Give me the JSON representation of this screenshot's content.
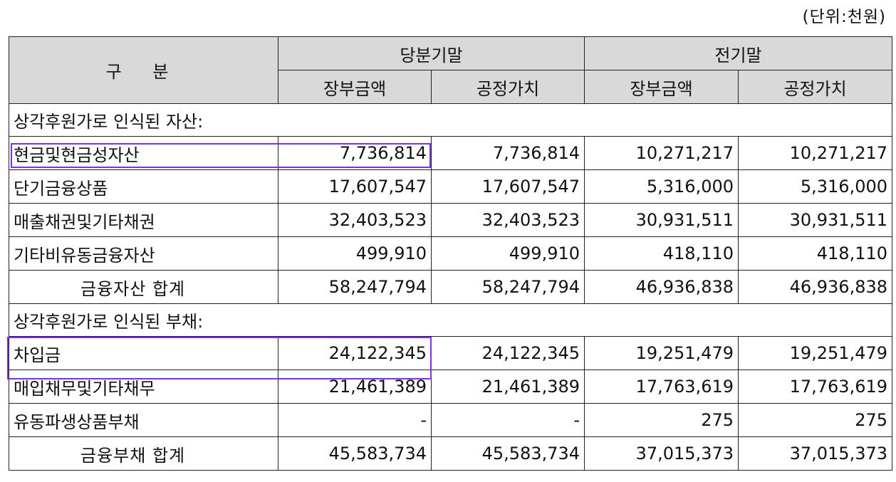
{
  "unit_label": "(단위:천원)",
  "header": {
    "category": "구 분",
    "current_period": "당분기말",
    "prior_period": "전기말",
    "book_value": "장부금액",
    "fair_value": "공정가치"
  },
  "sections": [
    {
      "title": "상각후원가로 인식된 자산:",
      "rows": [
        {
          "label": "현금및현금성자산",
          "cur_book": "7,736,814",
          "cur_fair": "7,736,814",
          "prev_book": "10,271,217",
          "prev_fair": "10,271,217"
        },
        {
          "label": "단기금융상품",
          "cur_book": "17,607,547",
          "cur_fair": "17,607,547",
          "prev_book": "5,316,000",
          "prev_fair": "5,316,000"
        },
        {
          "label": "매출채권및기타채권",
          "cur_book": "32,403,523",
          "cur_fair": "32,403,523",
          "prev_book": "30,931,511",
          "prev_fair": "30,931,511"
        },
        {
          "label": "기타비유동금융자산",
          "cur_book": "499,910",
          "cur_fair": "499,910",
          "prev_book": "418,110",
          "prev_fair": "418,110"
        }
      ],
      "total": {
        "label": "금융자산 합계",
        "cur_book": "58,247,794",
        "cur_fair": "58,247,794",
        "prev_book": "46,936,838",
        "prev_fair": "46,936,838"
      }
    },
    {
      "title": "상각후원가로 인식된 부채:",
      "rows": [
        {
          "label": "차입금",
          "cur_book": "24,122,345",
          "cur_fair": "24,122,345",
          "prev_book": "19,251,479",
          "prev_fair": "19,251,479"
        },
        {
          "label": "매입채무및기타채무",
          "cur_book": "21,461,389",
          "cur_fair": "21,461,389",
          "prev_book": "17,763,619",
          "prev_fair": "17,763,619"
        },
        {
          "label": "유동파생상품부채",
          "cur_book": "-",
          "cur_fair": "-",
          "prev_book": "275",
          "prev_fair": "275"
        }
      ],
      "total": {
        "label": "금융부채 합계",
        "cur_book": "45,583,734",
        "cur_fair": "45,583,734",
        "prev_book": "37,015,373",
        "prev_fair": "37,015,373"
      }
    }
  ],
  "highlight_color": "#7b2ff2"
}
